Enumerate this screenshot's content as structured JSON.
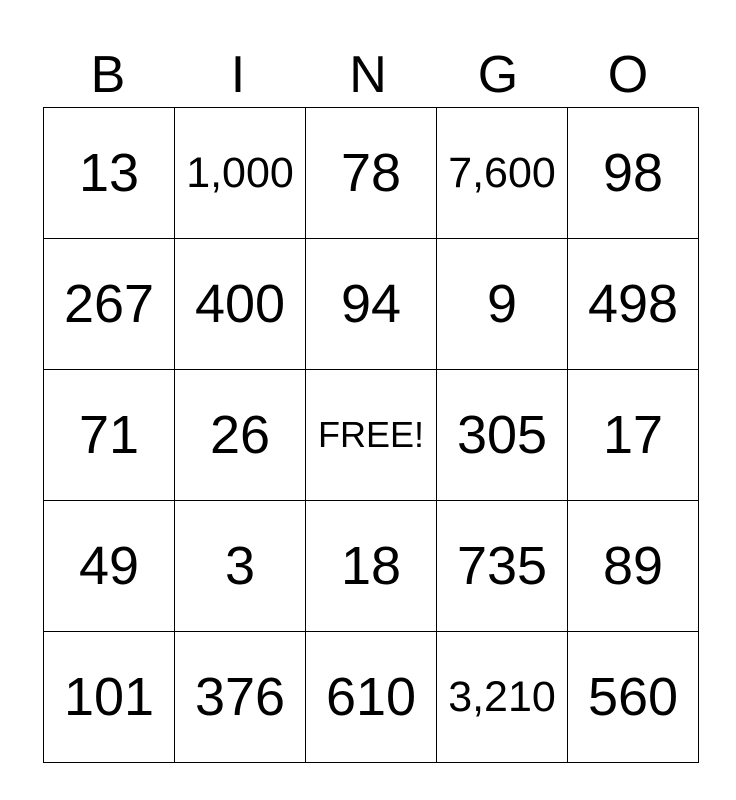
{
  "header": [
    "B",
    "I",
    "N",
    "G",
    "O"
  ],
  "rows": [
    [
      "13",
      "1,000",
      "78",
      "7,600",
      "98"
    ],
    [
      "267",
      "400",
      "94",
      "9",
      "498"
    ],
    [
      "71",
      "26",
      "FREE!",
      "305",
      "17"
    ],
    [
      "49",
      "3",
      "18",
      "735",
      "89"
    ],
    [
      "101",
      "376",
      "610",
      "3,210",
      "560"
    ]
  ]
}
